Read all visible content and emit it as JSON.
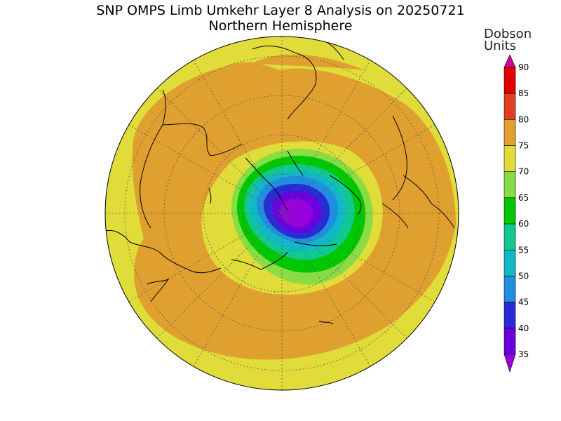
{
  "title": "SNP OMPS Limb Umkehr Layer 8 Analysis on 20250721",
  "subtitle": "Northern Hemisphere",
  "colorbar": {
    "title_line1": "Dobson",
    "title_line2": "Units",
    "levels": [
      "35",
      "40",
      "45",
      "50",
      "55",
      "60",
      "65",
      "70",
      "75",
      "80",
      "85",
      "90"
    ],
    "colors": [
      "#9900dd",
      "#6a00e0",
      "#2a2ad8",
      "#1f8fe0",
      "#12b8c8",
      "#10c890",
      "#00c800",
      "#88dd44",
      "#e0dc3a",
      "#e0a030",
      "#e04020",
      "#e00000",
      "#cc0099"
    ]
  },
  "map": {
    "projection": "north-polar-stereographic",
    "field_colors": {
      "outer": "#e0dc3a",
      "band": "#e0a030",
      "ring_green_light": "#88dd44",
      "ring_green": "#00c800",
      "ring_teal": "#10c890",
      "ring_cyan": "#12b8c8",
      "ring_blue": "#1f8fe0",
      "ring_dblue": "#2a2ad8",
      "ring_purple": "#6a00e0",
      "core": "#9900dd"
    }
  }
}
